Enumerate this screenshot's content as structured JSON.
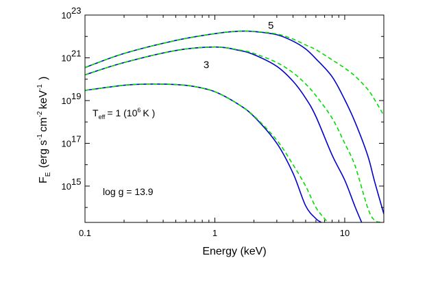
{
  "chart_data": {
    "type": "line",
    "xscale": "log",
    "yscale": "log",
    "xlim": [
      0.1,
      20
    ],
    "ylim": [
      20000000000000.0,
      1e+23
    ],
    "xlabel": "Energy (keV)",
    "ylabel": {
      "main": "F",
      "main_sub": "E",
      "open": "(erg s",
      "sup1": "-1",
      "cm": "cm",
      "sup2": "-2",
      "kev": "keV",
      "sup3": "-1",
      "close": ")"
    },
    "x_ticks": [
      {
        "value": 0.1,
        "label": "0.1"
      },
      {
        "value": 1,
        "label": "1"
      },
      {
        "value": 10,
        "label": "10"
      }
    ],
    "y_ticks": [
      {
        "value": 1000000000000000.0,
        "base": "10",
        "exp": "15"
      },
      {
        "value": 1e+17,
        "base": "10",
        "exp": "17"
      },
      {
        "value": 1e+19,
        "base": "10",
        "exp": "19"
      },
      {
        "value": 1e+21,
        "base": "10",
        "exp": "21"
      },
      {
        "value": 1e+23,
        "base": "10",
        "exp": "23"
      }
    ],
    "grid": false,
    "annotations": {
      "teff": {
        "T": "T",
        "sub": "eff",
        "eq": "= 1 (10",
        "sup": "6",
        "unit": "K )"
      },
      "logg": "log g = 13.9"
    },
    "curve_labels": [
      {
        "text": "5",
        "x": 2.7,
        "y": 2.3e+22
      },
      {
        "text": "3",
        "x": 0.86,
        "y": 3.3e+20
      }
    ],
    "series": [
      {
        "style": "solid",
        "color": "#0000cc",
        "x": [
          0.1,
          0.2,
          0.5,
          1,
          1.5,
          2,
          3,
          4,
          5,
          6,
          8,
          10,
          12,
          15,
          17,
          20
        ],
        "y": [
          3.5e+20,
          1.6e+21,
          6.5e+21,
          1.35e+22,
          1.75e+22,
          1.7e+22,
          1.2e+22,
          6e+21,
          2.6e+21,
          9e+20,
          1.3e+20,
          1.1e+19,
          1e+18,
          2.8e+16,
          1600000000000000.0,
          50000000000000.0
        ]
      },
      {
        "style": "dashed",
        "color": "#00dd00",
        "x": [
          0.1,
          0.2,
          0.5,
          1,
          1.5,
          2,
          3,
          4,
          5,
          6,
          8,
          10,
          12,
          15,
          17,
          20
        ],
        "y": [
          3.5e+20,
          1.6e+21,
          6.5e+21,
          1.35e+22,
          1.75e+22,
          1.72e+22,
          1.3e+22,
          7.5e+21,
          4e+21,
          2.4e+21,
          8e+20,
          3.3e+20,
          1.4e+20,
          3.4e+19,
          1.1e+19,
          2e+18
        ]
      },
      {
        "style": "solid",
        "color": "#0000cc",
        "x": [
          0.1,
          0.2,
          0.5,
          1,
          1.5,
          2,
          3,
          4,
          5,
          6,
          8,
          10,
          12,
          13.5
        ],
        "y": [
          1.6e+20,
          6e+20,
          2.2e+21,
          3.2e+21,
          2.3e+21,
          1.4e+21,
          4e+20,
          8e+19,
          1.3e+19,
          1.8e+18,
          2.8e+16,
          1900000000000000.0,
          110000000000000.0,
          20000000000000.0
        ]
      },
      {
        "style": "dashed",
        "color": "#00dd00",
        "x": [
          0.1,
          0.2,
          0.5,
          1,
          1.5,
          2,
          3,
          4,
          5,
          6,
          8,
          10,
          12,
          15,
          17,
          20
        ],
        "y": [
          1.6e+20,
          6e+20,
          2.2e+21,
          3.2e+21,
          2.4e+21,
          1.6e+21,
          6e+20,
          2e+20,
          6e+19,
          1.7e+19,
          1.5e+18,
          1e+17,
          9000000000000000.0,
          100000000000000.0,
          25000000000000.0,
          20000000000000.0
        ]
      },
      {
        "style": "solid",
        "color": "#0000cc",
        "x": [
          0.1,
          0.2,
          0.3,
          0.5,
          0.7,
          1,
          1.5,
          2,
          3,
          4,
          5,
          6,
          6.6
        ],
        "y": [
          3e+19,
          5.2e+19,
          5.9e+19,
          5.6e+19,
          4.5e+19,
          2.6e+19,
          7e+18,
          1.8e+18,
          1e+17,
          4000000000000000.0,
          120000000000000.0,
          30000000000000.0,
          20000000000000.0
        ]
      },
      {
        "style": "dashed",
        "color": "#00dd00",
        "x": [
          0.1,
          0.2,
          0.3,
          0.5,
          0.7,
          1,
          1.5,
          2,
          3,
          4,
          5,
          6,
          7,
          7.4
        ],
        "y": [
          3e+19,
          5.2e+19,
          5.9e+19,
          5.6e+19,
          4.5e+19,
          2.6e+19,
          7e+18,
          1.9e+18,
          1.4e+17,
          1e+16,
          1000000000000000.0,
          100000000000000.0,
          30000000000000.0,
          20000000000000.0
        ]
      }
    ]
  }
}
